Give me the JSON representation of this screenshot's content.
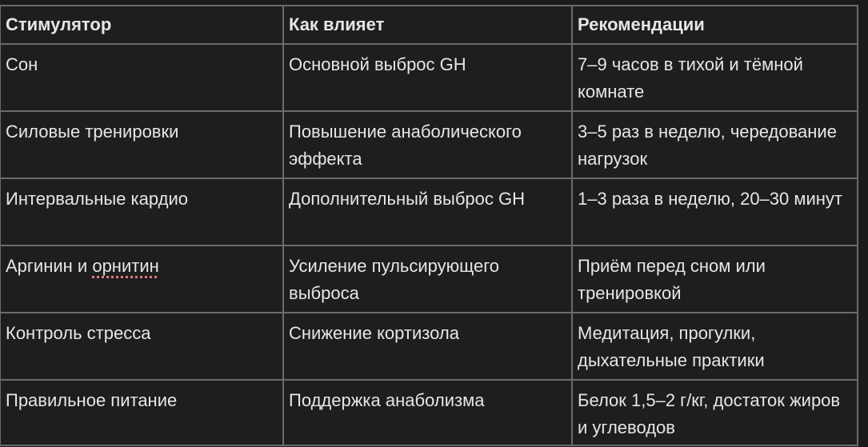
{
  "table": {
    "headers": [
      "Стимулятор",
      "Как влияет",
      "Рекомендации"
    ],
    "rows": [
      [
        "Сон",
        "Основной выброс GH",
        "7–9 часов в тихой и тёмной комнате"
      ],
      [
        "Силовые тренировки",
        "Повышение анаболического эффекта",
        "3–5 раз в неделю, чередование нагрузок"
      ],
      [
        "Интервальные кардио",
        "Дополнительный выброс GH",
        "1–3 раза в неделю, 20–30 минут"
      ],
      [
        "Аргинин и ",
        "Усиление пульсирующего выброса",
        "Приём перед сном или тренировкой"
      ],
      [
        "Контроль стресса",
        "Снижение кортизола",
        "Медитация, прогулки, дыхательные практики"
      ],
      [
        "Правильное питание",
        "Поддержка анаболизма",
        "Белок 1,5–2 г/кг, достаток жиров и углеводов"
      ]
    ],
    "misspelled_word": "орнитин"
  }
}
